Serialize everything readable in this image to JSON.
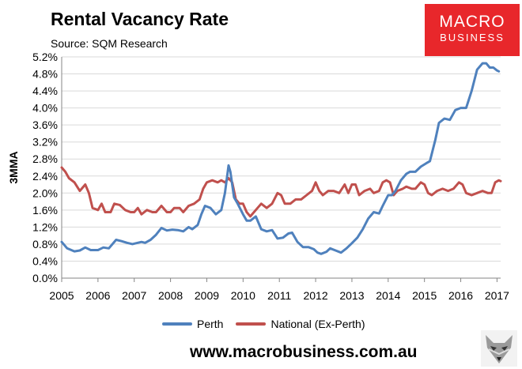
{
  "title": "Rental Vacancy Rate",
  "subtitle": "Source: SQM Research",
  "logo": {
    "line1": "MACRO",
    "line2": "BUSINESS",
    "color": "#e8272b"
  },
  "footer": "www.macrobusiness.com.au",
  "chart_data": {
    "type": "line",
    "title": "Rental Vacancy Rate",
    "ylabel": "3MMA",
    "xlabel": "",
    "xlim": [
      2005,
      2017.1
    ],
    "ylim": [
      0,
      5.2
    ],
    "yticks": [
      "0.0%",
      "0.4%",
      "0.8%",
      "1.2%",
      "1.6%",
      "2.0%",
      "2.4%",
      "2.8%",
      "3.2%",
      "3.6%",
      "4.0%",
      "4.4%",
      "4.8%",
      "5.2%"
    ],
    "xticks": [
      "2005",
      "2006",
      "2007",
      "2008",
      "2009",
      "2010",
      "2011",
      "2012",
      "2013",
      "2014",
      "2015",
      "2016",
      "2017"
    ],
    "grid": "horizontal",
    "legend_position": "bottom",
    "series": [
      {
        "name": "Perth",
        "color": "#4f81bd",
        "points": [
          [
            2005.0,
            0.85
          ],
          [
            2005.15,
            0.7
          ],
          [
            2005.35,
            0.63
          ],
          [
            2005.5,
            0.65
          ],
          [
            2005.65,
            0.72
          ],
          [
            2005.8,
            0.66
          ],
          [
            2006.0,
            0.66
          ],
          [
            2006.15,
            0.72
          ],
          [
            2006.3,
            0.7
          ],
          [
            2006.5,
            0.9
          ],
          [
            2006.65,
            0.87
          ],
          [
            2006.8,
            0.83
          ],
          [
            2006.95,
            0.8
          ],
          [
            2007.05,
            0.82
          ],
          [
            2007.2,
            0.85
          ],
          [
            2007.3,
            0.83
          ],
          [
            2007.45,
            0.9
          ],
          [
            2007.6,
            1.02
          ],
          [
            2007.75,
            1.18
          ],
          [
            2007.9,
            1.12
          ],
          [
            2008.05,
            1.14
          ],
          [
            2008.2,
            1.13
          ],
          [
            2008.35,
            1.1
          ],
          [
            2008.5,
            1.2
          ],
          [
            2008.6,
            1.15
          ],
          [
            2008.75,
            1.25
          ],
          [
            2008.85,
            1.5
          ],
          [
            2008.95,
            1.7
          ],
          [
            2009.1,
            1.65
          ],
          [
            2009.25,
            1.5
          ],
          [
            2009.4,
            1.6
          ],
          [
            2009.5,
            2.0
          ],
          [
            2009.6,
            2.65
          ],
          [
            2009.65,
            2.5
          ],
          [
            2009.75,
            1.9
          ],
          [
            2009.85,
            1.75
          ],
          [
            2010.0,
            1.5
          ],
          [
            2010.1,
            1.35
          ],
          [
            2010.2,
            1.35
          ],
          [
            2010.35,
            1.45
          ],
          [
            2010.5,
            1.15
          ],
          [
            2010.65,
            1.1
          ],
          [
            2010.8,
            1.13
          ],
          [
            2010.95,
            0.93
          ],
          [
            2011.1,
            0.95
          ],
          [
            2011.25,
            1.05
          ],
          [
            2011.35,
            1.07
          ],
          [
            2011.5,
            0.85
          ],
          [
            2011.65,
            0.73
          ],
          [
            2011.8,
            0.73
          ],
          [
            2011.95,
            0.68
          ],
          [
            2012.05,
            0.6
          ],
          [
            2012.15,
            0.57
          ],
          [
            2012.3,
            0.62
          ],
          [
            2012.4,
            0.7
          ],
          [
            2012.55,
            0.65
          ],
          [
            2012.7,
            0.6
          ],
          [
            2012.85,
            0.7
          ],
          [
            2013.0,
            0.82
          ],
          [
            2013.15,
            0.95
          ],
          [
            2013.3,
            1.15
          ],
          [
            2013.45,
            1.4
          ],
          [
            2013.6,
            1.55
          ],
          [
            2013.75,
            1.52
          ],
          [
            2013.85,
            1.7
          ],
          [
            2014.0,
            1.95
          ],
          [
            2014.1,
            1.95
          ],
          [
            2014.2,
            2.05
          ],
          [
            2014.35,
            2.3
          ],
          [
            2014.5,
            2.45
          ],
          [
            2014.6,
            2.5
          ],
          [
            2014.75,
            2.5
          ],
          [
            2014.9,
            2.62
          ],
          [
            2015.05,
            2.7
          ],
          [
            2015.15,
            2.75
          ],
          [
            2015.3,
            3.25
          ],
          [
            2015.4,
            3.65
          ],
          [
            2015.55,
            3.75
          ],
          [
            2015.7,
            3.72
          ],
          [
            2015.85,
            3.95
          ],
          [
            2016.0,
            4.0
          ],
          [
            2016.15,
            4.0
          ],
          [
            2016.3,
            4.4
          ],
          [
            2016.45,
            4.9
          ],
          [
            2016.6,
            5.05
          ],
          [
            2016.7,
            5.05
          ],
          [
            2016.8,
            4.95
          ],
          [
            2016.9,
            4.95
          ],
          [
            2017.0,
            4.88
          ],
          [
            2017.05,
            4.86
          ]
        ]
      },
      {
        "name": "National (Ex-Perth)",
        "color": "#c0504d",
        "points": [
          [
            2005.0,
            2.6
          ],
          [
            2005.1,
            2.5
          ],
          [
            2005.2,
            2.35
          ],
          [
            2005.35,
            2.25
          ],
          [
            2005.5,
            2.05
          ],
          [
            2005.65,
            2.2
          ],
          [
            2005.75,
            2.0
          ],
          [
            2005.85,
            1.65
          ],
          [
            2006.0,
            1.6
          ],
          [
            2006.1,
            1.75
          ],
          [
            2006.2,
            1.55
          ],
          [
            2006.35,
            1.55
          ],
          [
            2006.45,
            1.75
          ],
          [
            2006.6,
            1.72
          ],
          [
            2006.75,
            1.6
          ],
          [
            2006.9,
            1.55
          ],
          [
            2007.0,
            1.55
          ],
          [
            2007.1,
            1.65
          ],
          [
            2007.2,
            1.5
          ],
          [
            2007.35,
            1.6
          ],
          [
            2007.5,
            1.55
          ],
          [
            2007.6,
            1.55
          ],
          [
            2007.75,
            1.7
          ],
          [
            2007.9,
            1.55
          ],
          [
            2008.0,
            1.55
          ],
          [
            2008.1,
            1.65
          ],
          [
            2008.25,
            1.65
          ],
          [
            2008.35,
            1.55
          ],
          [
            2008.5,
            1.7
          ],
          [
            2008.65,
            1.75
          ],
          [
            2008.8,
            1.85
          ],
          [
            2008.9,
            2.1
          ],
          [
            2009.0,
            2.25
          ],
          [
            2009.15,
            2.3
          ],
          [
            2009.3,
            2.25
          ],
          [
            2009.4,
            2.3
          ],
          [
            2009.5,
            2.25
          ],
          [
            2009.6,
            2.35
          ],
          [
            2009.7,
            2.25
          ],
          [
            2009.8,
            1.85
          ],
          [
            2009.9,
            1.75
          ],
          [
            2010.0,
            1.75
          ],
          [
            2010.1,
            1.55
          ],
          [
            2010.2,
            1.45
          ],
          [
            2010.35,
            1.6
          ],
          [
            2010.5,
            1.75
          ],
          [
            2010.65,
            1.65
          ],
          [
            2010.8,
            1.75
          ],
          [
            2010.95,
            2.0
          ],
          [
            2011.05,
            1.95
          ],
          [
            2011.15,
            1.75
          ],
          [
            2011.3,
            1.75
          ],
          [
            2011.45,
            1.85
          ],
          [
            2011.6,
            1.85
          ],
          [
            2011.75,
            1.95
          ],
          [
            2011.9,
            2.05
          ],
          [
            2012.0,
            2.25
          ],
          [
            2012.1,
            2.05
          ],
          [
            2012.2,
            1.95
          ],
          [
            2012.35,
            2.05
          ],
          [
            2012.5,
            2.05
          ],
          [
            2012.65,
            2.0
          ],
          [
            2012.8,
            2.2
          ],
          [
            2012.9,
            2.0
          ],
          [
            2013.0,
            2.2
          ],
          [
            2013.1,
            2.2
          ],
          [
            2013.2,
            1.95
          ],
          [
            2013.35,
            2.05
          ],
          [
            2013.5,
            2.1
          ],
          [
            2013.6,
            2.0
          ],
          [
            2013.75,
            2.05
          ],
          [
            2013.85,
            2.25
          ],
          [
            2013.95,
            2.3
          ],
          [
            2014.05,
            2.25
          ],
          [
            2014.15,
            1.95
          ],
          [
            2014.25,
            2.05
          ],
          [
            2014.4,
            2.1
          ],
          [
            2014.5,
            2.15
          ],
          [
            2014.65,
            2.1
          ],
          [
            2014.75,
            2.1
          ],
          [
            2014.9,
            2.25
          ],
          [
            2015.0,
            2.2
          ],
          [
            2015.1,
            2.0
          ],
          [
            2015.2,
            1.95
          ],
          [
            2015.35,
            2.05
          ],
          [
            2015.5,
            2.1
          ],
          [
            2015.65,
            2.05
          ],
          [
            2015.8,
            2.1
          ],
          [
            2015.95,
            2.25
          ],
          [
            2016.05,
            2.2
          ],
          [
            2016.15,
            2.0
          ],
          [
            2016.3,
            1.95
          ],
          [
            2016.45,
            2.0
          ],
          [
            2016.6,
            2.05
          ],
          [
            2016.75,
            2.0
          ],
          [
            2016.85,
            2.0
          ],
          [
            2016.95,
            2.25
          ],
          [
            2017.05,
            2.3
          ],
          [
            2017.1,
            2.28
          ]
        ]
      }
    ]
  }
}
